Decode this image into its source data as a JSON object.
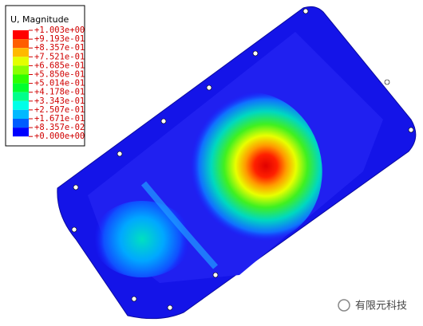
{
  "legend": {
    "title": "U, Magnitude",
    "labels": [
      "+1.003e+00",
      "+9.193e-01",
      "+8.357e-01",
      "+7.521e-01",
      "+6.685e-01",
      "+5.850e-01",
      "+5.014e-01",
      "+4.178e-01",
      "+3.343e-01",
      "+2.507e-01",
      "+1.671e-01",
      "+8.357e-02",
      "+0.000e+00"
    ],
    "colors": [
      "#ff0000",
      "#ff5d00",
      "#ffb900",
      "#e3ff00",
      "#8aff00",
      "#2eff00",
      "#00ff2e",
      "#00ff8b",
      "#00ffe8",
      "#00b9ff",
      "#005dff",
      "#0000ff"
    ]
  },
  "watermark": {
    "text": "有限元科技"
  }
}
